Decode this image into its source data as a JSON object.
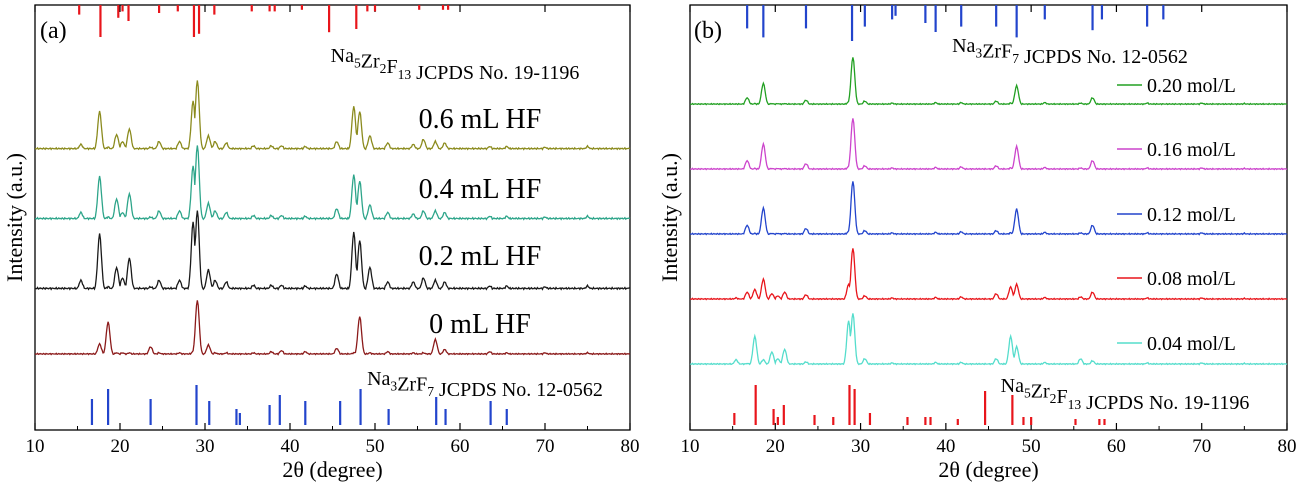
{
  "chart_data": [
    {
      "type": "line",
      "panel_label": "(a)",
      "xlabel": "2θ (degree)",
      "ylabel": "Intensity (a.u.)",
      "xlim": [
        10,
        80
      ],
      "xticks": [
        "10",
        "20",
        "30",
        "40",
        "50",
        "60",
        "70",
        "80"
      ],
      "x": [
        10,
        15.4,
        17.6,
        18.6,
        19.6,
        20.3,
        21.1,
        23.6,
        24.6,
        27,
        28.6,
        29.1,
        30.4,
        31.2,
        32.5,
        35.7,
        37.8,
        39,
        41.8,
        45.5,
        47.5,
        48.2,
        49.4,
        51.5,
        54.5,
        55.7,
        57.1,
        58.2,
        63.5,
        65.5,
        70,
        75,
        80
      ],
      "series": [
        {
          "name": "0.6 mL HF",
          "color": "#8b8b1e",
          "label_color": "#000000",
          "values": [
            0.02,
            0.08,
            0.55,
            0.04,
            0.22,
            0.12,
            0.3,
            0.04,
            0.12,
            0.12,
            0.7,
            1.0,
            0.2,
            0.12,
            0.1,
            0.06,
            0.06,
            0.06,
            0.05,
            0.12,
            0.62,
            0.55,
            0.2,
            0.1,
            0.08,
            0.15,
            0.12,
            0.1,
            0.05,
            0.05,
            0.04,
            0.05,
            0.03
          ]
        },
        {
          "name": "0.4 mL HF",
          "color": "#2ea58a",
          "label_color": "#000000",
          "values": [
            0.02,
            0.1,
            0.58,
            0.04,
            0.28,
            0.1,
            0.35,
            0.04,
            0.12,
            0.12,
            0.72,
            1.0,
            0.22,
            0.12,
            0.1,
            0.06,
            0.06,
            0.06,
            0.05,
            0.15,
            0.6,
            0.52,
            0.2,
            0.1,
            0.08,
            0.12,
            0.12,
            0.1,
            0.05,
            0.05,
            0.04,
            0.05,
            0.03
          ]
        },
        {
          "name": "0.2 mL HF",
          "color": "#1a1a1a",
          "label_color": "#000000",
          "values": [
            0.02,
            0.12,
            0.7,
            0.04,
            0.28,
            0.15,
            0.4,
            0.04,
            0.12,
            0.12,
            0.85,
            1.0,
            0.25,
            0.12,
            0.1,
            0.06,
            0.06,
            0.06,
            0.05,
            0.2,
            0.72,
            0.62,
            0.28,
            0.1,
            0.1,
            0.15,
            0.12,
            0.1,
            0.05,
            0.05,
            0.04,
            0.05,
            0.03
          ]
        },
        {
          "name": "0 mL HF",
          "color": "#8b1a1a",
          "label_color": "#000000",
          "values": [
            0.02,
            0.02,
            0.2,
            0.6,
            0.04,
            0.04,
            0.04,
            0.15,
            0.04,
            0.04,
            0.06,
            1.0,
            0.18,
            0.04,
            0.04,
            0.04,
            0.06,
            0.08,
            0.06,
            0.12,
            0.04,
            0.7,
            0.04,
            0.06,
            0.04,
            0.04,
            0.28,
            0.1,
            0.06,
            0.04,
            0.04,
            0.04,
            0.02
          ]
        }
      ],
      "reference_top": {
        "label": "Na₅Zr₂F₁₃ JCPDS No. 19-1196",
        "color": "#e8151b",
        "positions": [
          15.2,
          17.7,
          19.8,
          20.3,
          21.0,
          24.6,
          26.8,
          28.7,
          29.3,
          31.1,
          35.5,
          37.6,
          38.2,
          41.4,
          44.6,
          47.8,
          49.1,
          50.0,
          55.2,
          58.0,
          58.6
        ],
        "heights": [
          0.3,
          1.0,
          0.4,
          0.2,
          0.5,
          0.25,
          0.2,
          1.0,
          0.9,
          0.3,
          0.2,
          0.2,
          0.2,
          0.15,
          0.85,
          0.75,
          0.2,
          0.2,
          0.15,
          0.15,
          0.15
        ]
      },
      "reference_bottom": {
        "label": "Na₃ZrF₇ JCPDS No. 12-0562",
        "color": "#2244cc",
        "positions": [
          16.7,
          18.6,
          23.6,
          29.0,
          30.5,
          33.7,
          34.1,
          37.6,
          38.8,
          41.8,
          45.9,
          48.3,
          51.6,
          57.2,
          58.3,
          63.6,
          65.5
        ],
        "heights": [
          0.65,
          0.9,
          0.65,
          1.0,
          0.6,
          0.4,
          0.3,
          0.5,
          0.75,
          0.6,
          0.6,
          0.9,
          0.4,
          0.7,
          0.4,
          0.6,
          0.4
        ]
      }
    },
    {
      "type": "line",
      "panel_label": "(b)",
      "xlabel": "2θ (degree)",
      "ylabel": "Intensity (a.u.)",
      "xlim": [
        10,
        80
      ],
      "xticks": [
        "10",
        "20",
        "30",
        "40",
        "50",
        "60",
        "70",
        "80"
      ],
      "x": [
        10,
        15.4,
        16.7,
        17.6,
        18.6,
        19.6,
        20.3,
        21.1,
        23.6,
        28.6,
        29.1,
        30.5,
        33.7,
        38.8,
        41.8,
        45.9,
        47.6,
        48.3,
        51.6,
        55.8,
        57.2,
        63.6,
        70,
        75,
        80
      ],
      "series": [
        {
          "name": "0.20 mol/L",
          "color": "#22a022",
          "label_color": "#000000",
          "values": [
            0.02,
            0.02,
            0.15,
            0.03,
            0.45,
            0.03,
            0.03,
            0.03,
            0.1,
            0.06,
            1.0,
            0.08,
            0.04,
            0.05,
            0.05,
            0.08,
            0.04,
            0.4,
            0.05,
            0.04,
            0.15,
            0.04,
            0.04,
            0.03,
            0.02
          ]
        },
        {
          "name": "0.16 mol/L",
          "color": "#cc44cc",
          "label_color": "#000000",
          "values": [
            0.02,
            0.02,
            0.18,
            0.03,
            0.5,
            0.03,
            0.03,
            0.03,
            0.12,
            0.06,
            1.0,
            0.08,
            0.04,
            0.05,
            0.06,
            0.08,
            0.04,
            0.45,
            0.05,
            0.04,
            0.18,
            0.04,
            0.04,
            0.03,
            0.02
          ]
        },
        {
          "name": "0.12 mol/L",
          "color": "#2244cc",
          "label_color": "#000000",
          "values": [
            0.02,
            0.02,
            0.18,
            0.03,
            0.5,
            0.03,
            0.03,
            0.03,
            0.12,
            0.06,
            1.0,
            0.08,
            0.04,
            0.05,
            0.06,
            0.08,
            0.04,
            0.48,
            0.05,
            0.04,
            0.18,
            0.04,
            0.04,
            0.03,
            0.02
          ]
        },
        {
          "name": "0.08 mol/L",
          "color": "#e8151b",
          "label_color": "#000000",
          "values": [
            0.02,
            0.04,
            0.15,
            0.2,
            0.4,
            0.12,
            0.08,
            0.15,
            0.1,
            0.3,
            1.0,
            0.08,
            0.04,
            0.05,
            0.06,
            0.12,
            0.25,
            0.3,
            0.05,
            0.06,
            0.15,
            0.04,
            0.04,
            0.03,
            0.02
          ]
        },
        {
          "name": "0.04 mol/L",
          "color": "#55ddcc",
          "label_color": "#000000",
          "values": [
            0.02,
            0.1,
            0.03,
            0.55,
            0.1,
            0.25,
            0.12,
            0.3,
            0.06,
            0.85,
            1.0,
            0.12,
            0.04,
            0.05,
            0.05,
            0.12,
            0.55,
            0.35,
            0.05,
            0.12,
            0.08,
            0.04,
            0.04,
            0.03,
            0.02
          ]
        }
      ],
      "reference_top": {
        "label": "Na₃ZrF₇ JCPDS No. 12-0562",
        "color": "#2244cc",
        "positions": [
          16.7,
          18.6,
          23.6,
          29.0,
          30.5,
          33.7,
          34.1,
          37.6,
          38.8,
          41.8,
          45.9,
          48.3,
          51.6,
          57.2,
          58.3,
          63.6,
          65.5
        ],
        "heights": [
          0.65,
          0.9,
          0.65,
          1.0,
          0.6,
          0.4,
          0.3,
          0.5,
          0.75,
          0.6,
          0.6,
          0.9,
          0.4,
          0.7,
          0.4,
          0.6,
          0.4
        ]
      },
      "reference_bottom": {
        "label": "Na₅Zr₂F₁₃ JCPDS No. 19-1196",
        "color": "#e8151b",
        "positions": [
          15.2,
          17.7,
          19.8,
          20.3,
          21.0,
          24.6,
          26.8,
          28.7,
          29.3,
          31.1,
          35.5,
          37.6,
          38.2,
          41.4,
          44.6,
          47.8,
          49.1,
          50.0,
          55.2,
          58.0,
          58.6
        ],
        "heights": [
          0.3,
          1.0,
          0.4,
          0.2,
          0.5,
          0.25,
          0.2,
          1.0,
          0.9,
          0.3,
          0.2,
          0.2,
          0.2,
          0.15,
          0.85,
          0.75,
          0.2,
          0.2,
          0.15,
          0.15,
          0.15
        ]
      }
    }
  ]
}
